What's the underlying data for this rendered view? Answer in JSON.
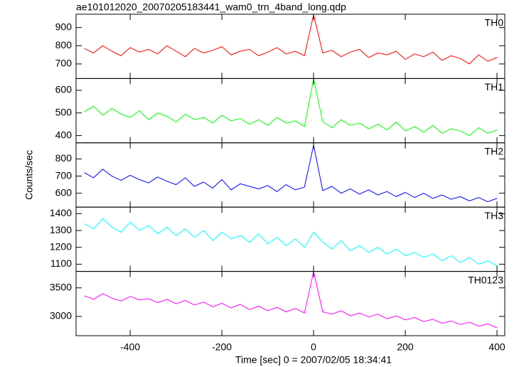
{
  "title": "ae101012020_20070205183441_wam0_trn_4band_long.qdp",
  "xlabel": "Time [sec] 0 = 2007/02/05 18:34:41",
  "ylabel": "Counts/sec",
  "chart_data": [
    {
      "type": "line",
      "label": "TH0",
      "color": "#ff0000",
      "x": [
        -500,
        -480,
        -460,
        -440,
        -420,
        -400,
        -380,
        -360,
        -340,
        -320,
        -300,
        -280,
        -260,
        -240,
        -220,
        -200,
        -180,
        -160,
        -140,
        -120,
        -100,
        -80,
        -60,
        -40,
        -20,
        0,
        20,
        40,
        60,
        80,
        100,
        120,
        140,
        160,
        180,
        200,
        220,
        240,
        260,
        280,
        300,
        320,
        340,
        360,
        380,
        400
      ],
      "values": [
        785,
        760,
        800,
        770,
        745,
        790,
        765,
        780,
        755,
        800,
        770,
        740,
        785,
        760,
        775,
        795,
        750,
        770,
        780,
        745,
        765,
        790,
        755,
        770,
        745,
        970,
        760,
        775,
        740,
        765,
        780,
        735,
        760,
        750,
        770,
        725,
        755,
        740,
        765,
        720,
        745,
        730,
        700,
        750,
        715,
        735
      ],
      "xlim": [
        -518,
        417
      ],
      "xticks": [
        -400,
        -200,
        0,
        200,
        400
      ],
      "ylim": [
        620,
        973
      ],
      "yticks": [
        700,
        800,
        900
      ]
    },
    {
      "type": "line",
      "label": "TH1",
      "color": "#00ff00",
      "x": [
        -500,
        -480,
        -460,
        -440,
        -420,
        -400,
        -380,
        -360,
        -340,
        -320,
        -300,
        -280,
        -260,
        -240,
        -220,
        -200,
        -180,
        -160,
        -140,
        -120,
        -100,
        -80,
        -60,
        -40,
        -20,
        0,
        20,
        40,
        60,
        80,
        100,
        120,
        140,
        160,
        180,
        200,
        220,
        240,
        260,
        280,
        300,
        320,
        340,
        360,
        380,
        400
      ],
      "values": [
        505,
        530,
        490,
        520,
        495,
        480,
        510,
        470,
        500,
        485,
        460,
        495,
        470,
        480,
        455,
        490,
        465,
        475,
        450,
        470,
        445,
        480,
        455,
        465,
        440,
        650,
        460,
        435,
        470,
        445,
        455,
        430,
        450,
        425,
        460,
        420,
        440,
        415,
        445,
        410,
        430,
        420,
        400,
        435,
        410,
        425
      ],
      "xlim": [
        -518,
        417
      ],
      "xticks": [
        -400,
        -200,
        0,
        200,
        400
      ],
      "ylim": [
        368,
        652
      ],
      "yticks": [
        400,
        500,
        600
      ]
    },
    {
      "type": "line",
      "label": "TH2",
      "color": "#0000ff",
      "x": [
        -500,
        -480,
        -460,
        -440,
        -420,
        -400,
        -380,
        -360,
        -340,
        -320,
        -300,
        -280,
        -260,
        -240,
        -220,
        -200,
        -180,
        -160,
        -140,
        -120,
        -100,
        -80,
        -60,
        -40,
        -20,
        0,
        20,
        40,
        60,
        80,
        100,
        120,
        140,
        160,
        180,
        200,
        220,
        240,
        260,
        280,
        300,
        320,
        340,
        360,
        380,
        400
      ],
      "values": [
        720,
        690,
        740,
        700,
        675,
        705,
        680,
        660,
        695,
        670,
        650,
        690,
        640,
        665,
        630,
        680,
        620,
        655,
        640,
        625,
        645,
        610,
        650,
        620,
        635,
        880,
        615,
        640,
        600,
        625,
        595,
        620,
        590,
        610,
        580,
        605,
        575,
        600,
        570,
        590,
        565,
        580,
        555,
        575,
        550,
        570
      ],
      "xlim": [
        -518,
        417
      ],
      "xticks": [
        -400,
        -200,
        0,
        200,
        400
      ],
      "ylim": [
        519,
        894
      ],
      "yticks": [
        600,
        700,
        800
      ]
    },
    {
      "type": "line",
      "label": "TH3",
      "color": "#00ffff",
      "x": [
        -500,
        -480,
        -460,
        -440,
        -420,
        -400,
        -380,
        -360,
        -340,
        -320,
        -300,
        -280,
        -260,
        -240,
        -220,
        -200,
        -180,
        -160,
        -140,
        -120,
        -100,
        -80,
        -60,
        -40,
        -20,
        0,
        20,
        40,
        60,
        80,
        100,
        120,
        140,
        160,
        180,
        200,
        220,
        240,
        260,
        280,
        300,
        320,
        340,
        360,
        380,
        400
      ],
      "values": [
        1340,
        1310,
        1370,
        1320,
        1290,
        1350,
        1300,
        1330,
        1280,
        1320,
        1270,
        1310,
        1260,
        1300,
        1240,
        1290,
        1250,
        1270,
        1230,
        1280,
        1220,
        1260,
        1210,
        1250,
        1200,
        1290,
        1230,
        1190,
        1240,
        1180,
        1210,
        1170,
        1200,
        1160,
        1190,
        1150,
        1170,
        1140,
        1160,
        1120,
        1150,
        1110,
        1140,
        1100,
        1120,
        1090
      ],
      "xlim": [
        -518,
        417
      ],
      "xticks": [
        -400,
        -200,
        0,
        200,
        400
      ],
      "ylim": [
        1057,
        1439
      ],
      "yticks": [
        1100,
        1200,
        1300,
        1400
      ]
    },
    {
      "type": "line",
      "label": "TH0123",
      "color": "#ff00ff",
      "x": [
        -500,
        -480,
        -460,
        -440,
        -420,
        -400,
        -380,
        -360,
        -340,
        -320,
        -300,
        -280,
        -260,
        -240,
        -220,
        -200,
        -180,
        -160,
        -140,
        -120,
        -100,
        -80,
        -60,
        -40,
        -20,
        0,
        20,
        40,
        60,
        80,
        100,
        120,
        140,
        160,
        180,
        200,
        220,
        240,
        260,
        280,
        300,
        320,
        340,
        360,
        380,
        400
      ],
      "values": [
        3360,
        3300,
        3400,
        3320,
        3270,
        3350,
        3290,
        3310,
        3240,
        3300,
        3220,
        3280,
        3200,
        3250,
        3170,
        3230,
        3150,
        3210,
        3120,
        3180,
        3100,
        3160,
        3080,
        3140,
        3060,
        3780,
        3080,
        3040,
        3100,
        3010,
        3060,
        2990,
        3040,
        2960,
        3010,
        2940,
        2980,
        2910,
        2950,
        2880,
        2920,
        2860,
        2900,
        2830,
        2870,
        2800
      ],
      "xlim": [
        -518,
        417
      ],
      "xticks": [
        -400,
        -200,
        0,
        200,
        400
      ],
      "ylim": [
        2663,
        3788
      ],
      "yticks": [
        3000,
        3500
      ]
    }
  ]
}
